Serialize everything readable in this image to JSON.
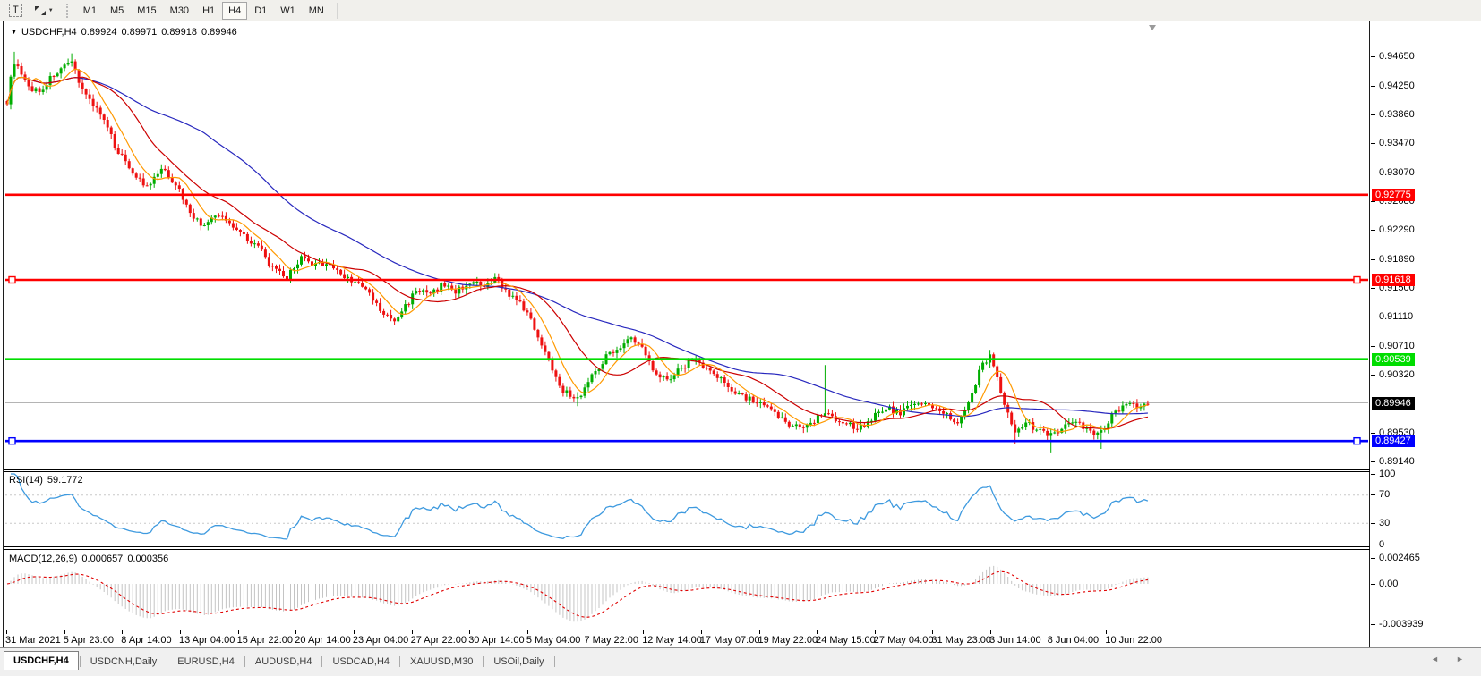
{
  "toolbar": {
    "text_tool_glyph": "T",
    "caret_glyph": "▼",
    "timeframes": [
      "M1",
      "M5",
      "M15",
      "M30",
      "H1",
      "H4",
      "D1",
      "W1",
      "MN"
    ],
    "active_timeframe": "H4"
  },
  "title_bar": {
    "collapse_glyph": "▼",
    "symbol": "USDCHF,H4",
    "open": "0.89924",
    "high": "0.89971",
    "low": "0.89918",
    "close": "0.89946"
  },
  "rsi": {
    "label": "RSI(14)",
    "value": "59.1772",
    "ticks": [
      "100",
      "70",
      "30",
      "0"
    ],
    "guides": [
      70,
      30
    ]
  },
  "macd": {
    "label": "MACD(12,26,9)",
    "value": "0.000657",
    "signal": "0.000356",
    "ticks": [
      "0.002465",
      "0.00",
      "-0.003939"
    ]
  },
  "time_axis": {
    "labels": [
      "31 Mar 2021",
      "5 Apr 23:00",
      "8 Apr 14:00",
      "13 Apr 04:00",
      "15 Apr 22:00",
      "20 Apr 14:00",
      "23 Apr 04:00",
      "27 Apr 22:00",
      "30 Apr 14:00",
      "5 May 04:00",
      "7 May 22:00",
      "12 May 14:00",
      "17 May 07:00",
      "19 May 22:00",
      "24 May 15:00",
      "27 May 04:00",
      "31 May 23:00",
      "3 Jun 14:00",
      "8 Jun 04:00",
      "10 Jun 22:00"
    ]
  },
  "tabs": {
    "items": [
      "USDCHF,H4",
      "USDCNH,Daily",
      "EURUSD,H4",
      "AUDUSD,H4",
      "USDCAD,H4",
      "XAUUSD,M30",
      "USOil,Daily"
    ],
    "active": "USDCHF,H4",
    "scroll_left": "◄",
    "scroll_right": "►"
  },
  "colors": {
    "up": "#00AD00",
    "down": "#EE1111",
    "ma_fast": "#FF9900",
    "ma_mid": "#CC0000",
    "ma_slow": "#2828BE",
    "rsi": "#3E9ADF",
    "rsi_guide": "#C8C8C8",
    "macd_hist": "#C4C4C4",
    "macd_signal": "#E00000",
    "current_line": "#B4B4B4",
    "current_tag_bg": "#000000"
  },
  "chart_data": {
    "type": "candlestick",
    "symbol": "USDCHF",
    "timeframe": "H4",
    "title": "USDCHF,H4 0.89924 0.89971 0.89918 0.89946",
    "y_axis_ticks": [
      "0.94650",
      "0.94250",
      "0.93860",
      "0.93470",
      "0.93070",
      "0.92680",
      "0.92290",
      "0.91890",
      "0.91500",
      "0.91110",
      "0.90710",
      "0.90320",
      "0.89530",
      "0.89140"
    ],
    "y_domain": [
      0.8904,
      0.95096
    ],
    "n_candles": 319,
    "price_path": [
      [
        0.0,
        0.9405
      ],
      [
        0.006,
        0.946
      ],
      [
        0.017,
        0.9425
      ],
      [
        0.029,
        0.9418
      ],
      [
        0.041,
        0.9442
      ],
      [
        0.057,
        0.9456
      ],
      [
        0.068,
        0.9415
      ],
      [
        0.08,
        0.9393
      ],
      [
        0.096,
        0.934
      ],
      [
        0.112,
        0.9305
      ],
      [
        0.123,
        0.9286
      ],
      [
        0.135,
        0.9312
      ],
      [
        0.147,
        0.9295
      ],
      [
        0.159,
        0.9258
      ],
      [
        0.17,
        0.9235
      ],
      [
        0.186,
        0.925
      ],
      [
        0.198,
        0.9236
      ],
      [
        0.21,
        0.922
      ],
      [
        0.221,
        0.9205
      ],
      [
        0.233,
        0.9176
      ],
      [
        0.245,
        0.9164
      ],
      [
        0.257,
        0.9192
      ],
      [
        0.268,
        0.918
      ],
      [
        0.28,
        0.9186
      ],
      [
        0.292,
        0.917
      ],
      [
        0.304,
        0.916
      ],
      [
        0.316,
        0.9146
      ],
      [
        0.327,
        0.912
      ],
      [
        0.339,
        0.9104
      ],
      [
        0.351,
        0.913
      ],
      [
        0.359,
        0.915
      ],
      [
        0.37,
        0.914
      ],
      [
        0.382,
        0.9156
      ],
      [
        0.394,
        0.9146
      ],
      [
        0.406,
        0.916
      ],
      [
        0.418,
        0.915
      ],
      [
        0.429,
        0.9164
      ],
      [
        0.441,
        0.914
      ],
      [
        0.453,
        0.9124
      ],
      [
        0.465,
        0.9088
      ],
      [
        0.476,
        0.9048
      ],
      [
        0.488,
        0.901
      ],
      [
        0.5,
        0.9
      ],
      [
        0.512,
        0.903
      ],
      [
        0.524,
        0.9056
      ],
      [
        0.535,
        0.907
      ],
      [
        0.547,
        0.9082
      ],
      [
        0.556,
        0.907
      ],
      [
        0.567,
        0.904
      ],
      [
        0.578,
        0.9026
      ],
      [
        0.59,
        0.904
      ],
      [
        0.602,
        0.9056
      ],
      [
        0.614,
        0.904
      ],
      [
        0.63,
        0.902
      ],
      [
        0.645,
        0.9004
      ],
      [
        0.658,
        0.8994
      ],
      [
        0.673,
        0.898
      ],
      [
        0.684,
        0.8968
      ],
      [
        0.696,
        0.896
      ],
      [
        0.708,
        0.8972
      ],
      [
        0.716,
        0.8984
      ],
      [
        0.732,
        0.8968
      ],
      [
        0.747,
        0.896
      ],
      [
        0.759,
        0.8976
      ],
      [
        0.771,
        0.8988
      ],
      [
        0.783,
        0.898
      ],
      [
        0.794,
        0.8996
      ],
      [
        0.809,
        0.899
      ],
      [
        0.822,
        0.8978
      ],
      [
        0.834,
        0.8966
      ],
      [
        0.845,
        0.9
      ],
      [
        0.853,
        0.9044
      ],
      [
        0.863,
        0.9058
      ],
      [
        0.873,
        0.9
      ],
      [
        0.883,
        0.895
      ],
      [
        0.893,
        0.8968
      ],
      [
        0.904,
        0.8958
      ],
      [
        0.914,
        0.8948
      ],
      [
        0.924,
        0.8962
      ],
      [
        0.936,
        0.8972
      ],
      [
        0.947,
        0.8958
      ],
      [
        0.958,
        0.895
      ],
      [
        0.967,
        0.8975
      ],
      [
        0.977,
        0.8988
      ],
      [
        0.984,
        0.8992
      ],
      [
        0.992,
        0.899
      ],
      [
        1.0,
        0.8995
      ]
    ],
    "spikes": [
      {
        "t": 0.006,
        "high": 0.9472
      },
      {
        "t": 0.057,
        "high": 0.947
      },
      {
        "t": 0.5,
        "low": 0.899
      },
      {
        "t": 0.716,
        "high": 0.9046
      },
      {
        "t": 0.883,
        "low": 0.8938
      },
      {
        "t": 0.914,
        "low": 0.8926
      },
      {
        "t": 0.958,
        "low": 0.8932
      }
    ],
    "levels": [
      {
        "label": "0.92775",
        "value": 0.92775,
        "color": "#FF0000",
        "handles": false
      },
      {
        "label": "0.91618",
        "value": 0.91618,
        "color": "#FF0000",
        "handles": true
      },
      {
        "label": "0.90539",
        "value": 0.90539,
        "color": "#00DD00",
        "handles": false
      },
      {
        "label": "0.89427",
        "value": 0.89427,
        "color": "#0000FF",
        "handles": true
      }
    ],
    "current_price": {
      "label": "0.89946",
      "value": 0.89946
    },
    "moving_averages": [
      {
        "period": 8,
        "color": "#FF9900"
      },
      {
        "period": 21,
        "color": "#CC0000"
      },
      {
        "period": 55,
        "color": "#2828BE"
      }
    ],
    "indicators": {
      "rsi_period": 14,
      "macd_params": [
        12,
        26,
        9
      ],
      "rsi_current": 59.1772,
      "macd_current": 0.000657,
      "macd_signal_current": 0.000356
    }
  }
}
